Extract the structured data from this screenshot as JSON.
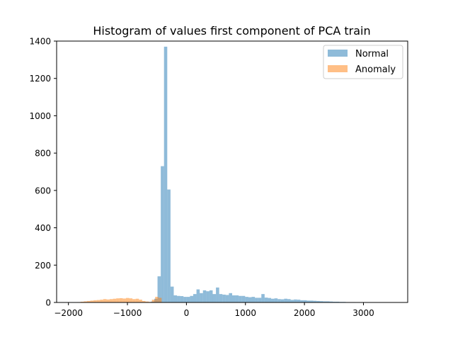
{
  "chart_data": {
    "type": "bar",
    "title": "Histogram of values first component of PCA train",
    "xlabel": "",
    "ylabel": "",
    "xlim": [
      -2200,
      3750
    ],
    "ylim": [
      0,
      1400
    ],
    "xticks": [
      -2000,
      -1000,
      0,
      1000,
      2000,
      3000
    ],
    "xtick_labels": [
      "−2000",
      "−1000",
      "0",
      "1000",
      "2000",
      "3000"
    ],
    "yticks": [
      0,
      200,
      400,
      600,
      800,
      1000,
      1200,
      1400
    ],
    "ytick_labels": [
      "0",
      "200",
      "400",
      "600",
      "800",
      "1000",
      "1200",
      "1400"
    ],
    "legend_position": "top-right",
    "grid": false,
    "series": [
      {
        "name": "Normal",
        "color": "#1f77b4",
        "opacity": 0.5,
        "bin_start": -600,
        "bin_width": 55,
        "values": [
          5,
          20,
          140,
          730,
          1370,
          605,
          85,
          38,
          35,
          34,
          30,
          30,
          35,
          45,
          70,
          50,
          65,
          60,
          65,
          45,
          80,
          45,
          42,
          40,
          50,
          38,
          38,
          35,
          35,
          30,
          28,
          30,
          25,
          25,
          45,
          26,
          24,
          20,
          22,
          18,
          17,
          20,
          18,
          14,
          16,
          15,
          12,
          12,
          10,
          10,
          9,
          8,
          7,
          6,
          6,
          5,
          4,
          4,
          3,
          3,
          2,
          2,
          2,
          1,
          1,
          1,
          1
        ]
      },
      {
        "name": "Anomaly",
        "color": "#ff7f0e",
        "opacity": 0.5,
        "bin_start": -1850,
        "bin_width": 55,
        "values": [
          2,
          4,
          6,
          8,
          10,
          12,
          13,
          15,
          18,
          16,
          18,
          20,
          22,
          23,
          21,
          24,
          22,
          18,
          20,
          15,
          8,
          5,
          3,
          15,
          30,
          25
        ]
      }
    ]
  }
}
